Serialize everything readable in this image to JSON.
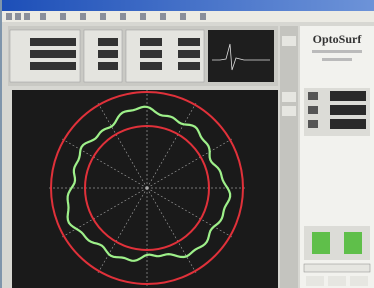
{
  "app": {
    "brand": "OptoSurf"
  }
}
